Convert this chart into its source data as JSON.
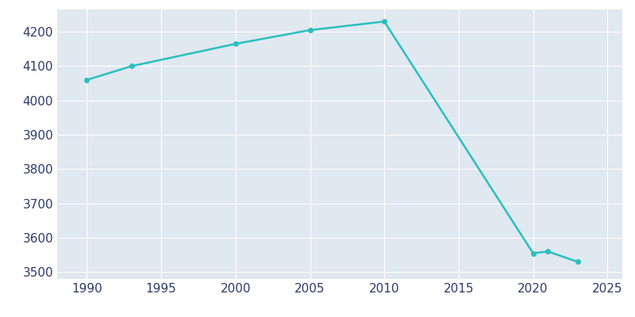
{
  "years": [
    1990,
    1993,
    2000,
    2005,
    2010,
    2020,
    2021,
    2023
  ],
  "population": [
    4060,
    4100,
    4165,
    4205,
    4230,
    3555,
    3560,
    3530
  ],
  "line_color": "#2ABFBF",
  "marker_color": "#2ABFBF",
  "figure_facecolor": "#FFFFFF",
  "plot_background_color": "#E0E8F0",
  "grid_color": "#FFFFFF",
  "xlim": [
    1988,
    2026
  ],
  "ylim": [
    3480,
    4265
  ],
  "xticks": [
    1990,
    1995,
    2000,
    2005,
    2010,
    2015,
    2020,
    2025
  ],
  "yticks": [
    3500,
    3600,
    3700,
    3800,
    3900,
    4000,
    4100,
    4200
  ],
  "tick_label_color": "#2B3A6B",
  "tick_label_fontsize": 11,
  "linewidth": 1.8,
  "marker_size": 4
}
